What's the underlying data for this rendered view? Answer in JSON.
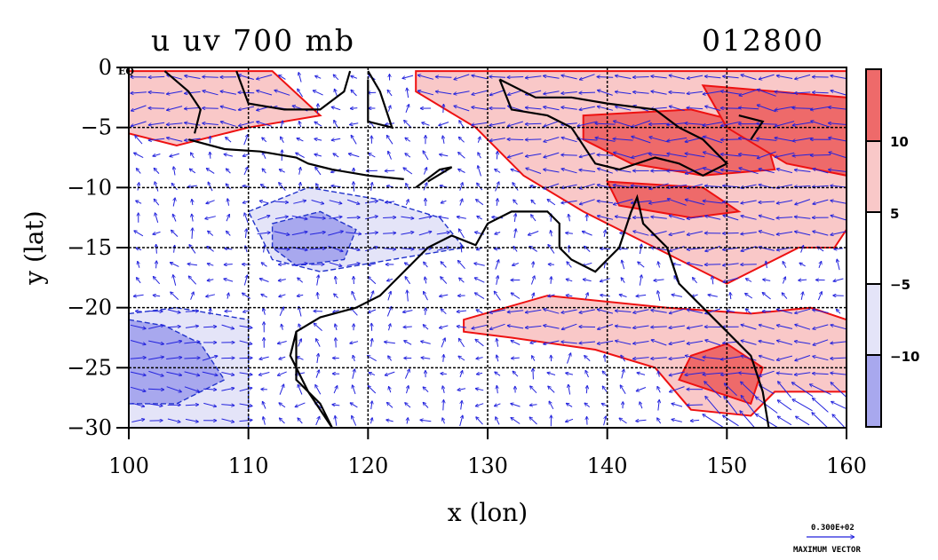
{
  "chart_data": {
    "type": "heatmap",
    "title": "u uv 700 mb",
    "date_label": "012800",
    "xlabel": "x (lon)",
    "ylabel": "y (lat)",
    "xlim": [
      100,
      160
    ],
    "ylim": [
      -30,
      0
    ],
    "x_ticks": [
      "100",
      "110",
      "120",
      "130",
      "140",
      "150",
      "160"
    ],
    "y_ticks": [
      "0",
      "−5",
      "−10",
      "−15",
      "−20",
      "−25",
      "−30"
    ],
    "y_tick_values": [
      0,
      -5,
      -10,
      -15,
      -20,
      -25,
      -30
    ],
    "x_tick_values": [
      100,
      110,
      120,
      130,
      140,
      150,
      160
    ],
    "equator_label": "EQ",
    "colorbar": {
      "labels": [
        "10",
        "5",
        "−5",
        "−10"
      ],
      "bins": [
        {
          "range": "> 10",
          "color": "#ee6a6a"
        },
        {
          "range": "5 to 10",
          "color": "#f9c8c8"
        },
        {
          "range": "-5 to 5",
          "color": "#ffffff"
        },
        {
          "range": "-10 to -5",
          "color": "#e4e4f8"
        },
        {
          "range": "< -10",
          "color": "#a8a8ee"
        }
      ]
    },
    "reference_vector": {
      "value": "0.300E+02",
      "label": "MAXIMUM VECTOR"
    },
    "regions": [
      {
        "name": "north-warm",
        "level": 5,
        "poly": [
          [
            100,
            -0.3
          ],
          [
            112,
            -0.3
          ],
          [
            116,
            -4
          ],
          [
            110,
            -5
          ],
          [
            104,
            -6.5
          ],
          [
            100,
            -5.5
          ]
        ]
      },
      {
        "name": "northeast-warm",
        "level": 5,
        "poly": [
          [
            124,
            -0.3
          ],
          [
            160,
            -0.3
          ],
          [
            160,
            -13.5
          ],
          [
            159,
            -15
          ],
          [
            156,
            -15
          ],
          [
            150,
            -18
          ],
          [
            144,
            -15
          ],
          [
            138,
            -12
          ],
          [
            133,
            -9
          ],
          [
            129,
            -5
          ],
          [
            124,
            -2
          ]
        ]
      },
      {
        "name": "northeast-strong-a",
        "level": 10,
        "poly": [
          [
            138,
            -4
          ],
          [
            147,
            -3.5
          ],
          [
            153,
            -5
          ],
          [
            154,
            -8.5
          ],
          [
            148,
            -9
          ],
          [
            142,
            -8
          ],
          [
            138,
            -6
          ]
        ]
      },
      {
        "name": "northeast-strong-b",
        "level": 10,
        "poly": [
          [
            140,
            -9.5
          ],
          [
            148,
            -10
          ],
          [
            151,
            -12
          ],
          [
            147,
            -12.5
          ],
          [
            141,
            -11.5
          ]
        ]
      },
      {
        "name": "northeast-strong-c",
        "level": 10,
        "poly": [
          [
            148,
            -1.5
          ],
          [
            160,
            -2.5
          ],
          [
            160,
            -9
          ],
          [
            155,
            -8
          ],
          [
            150,
            -5
          ]
        ]
      },
      {
        "name": "south-warm",
        "level": 5,
        "poly": [
          [
            128,
            -21
          ],
          [
            135,
            -19
          ],
          [
            145,
            -20
          ],
          [
            152,
            -20.5
          ],
          [
            157,
            -20
          ],
          [
            160,
            -21
          ],
          [
            160,
            -27
          ],
          [
            154,
            -27
          ],
          [
            152,
            -29
          ],
          [
            147,
            -28.5
          ],
          [
            144,
            -25
          ],
          [
            139,
            -23.5
          ],
          [
            132,
            -22.5
          ],
          [
            128,
            -22
          ]
        ]
      },
      {
        "name": "south-strong",
        "level": 10,
        "poly": [
          [
            147,
            -24
          ],
          [
            150,
            -23
          ],
          [
            153,
            -25
          ],
          [
            152,
            -28
          ],
          [
            149,
            -27
          ],
          [
            146,
            -26
          ]
        ]
      },
      {
        "name": "west-cool",
        "level": -5,
        "poly": [
          [
            100,
            -20.5
          ],
          [
            104,
            -20
          ],
          [
            110,
            -21
          ],
          [
            110,
            -30
          ],
          [
            100,
            -30
          ]
        ]
      },
      {
        "name": "west-strong",
        "level": -10,
        "poly": [
          [
            100,
            -21
          ],
          [
            103,
            -21.5
          ],
          [
            106,
            -23
          ],
          [
            108,
            -26
          ],
          [
            104,
            -28
          ],
          [
            100,
            -28
          ]
        ]
      },
      {
        "name": "central-cool",
        "level": -5,
        "poly": [
          [
            110,
            -12
          ],
          [
            115,
            -10
          ],
          [
            121,
            -11
          ],
          [
            126,
            -12.5
          ],
          [
            128,
            -15
          ],
          [
            122,
            -16
          ],
          [
            116,
            -17
          ],
          [
            112,
            -16
          ]
        ]
      },
      {
        "name": "central-strong",
        "level": -10,
        "poly": [
          [
            112,
            -13
          ],
          [
            116,
            -12
          ],
          [
            119,
            -13.5
          ],
          [
            118,
            -16
          ],
          [
            114,
            -16.5
          ],
          [
            112,
            -15
          ]
        ]
      }
    ],
    "coastlines": [
      [
        [
          114,
          -22
        ],
        [
          114,
          -26
        ],
        [
          116,
          -28
        ],
        [
          117,
          -30
        ],
        [
          115,
          -27
        ],
        [
          113.5,
          -24
        ],
        [
          114,
          -22
        ],
        [
          116,
          -20.8
        ],
        [
          119,
          -20
        ],
        [
          121,
          -19
        ],
        [
          123,
          -17
        ],
        [
          125,
          -15
        ],
        [
          127,
          -14
        ],
        [
          129,
          -14.8
        ],
        [
          130,
          -13
        ],
        [
          132,
          -12
        ],
        [
          135,
          -12
        ],
        [
          136,
          -13
        ],
        [
          136,
          -15
        ],
        [
          137,
          -16
        ],
        [
          139,
          -17
        ],
        [
          141,
          -15
        ],
        [
          142,
          -12
        ],
        [
          142.5,
          -10.8
        ],
        [
          143,
          -13
        ],
        [
          145,
          -15
        ],
        [
          146,
          -18
        ],
        [
          148,
          -20
        ],
        [
          150,
          -22
        ],
        [
          152,
          -24
        ],
        [
          153,
          -27
        ],
        [
          153.5,
          -30
        ]
      ],
      [
        [
          105,
          -6
        ],
        [
          108,
          -6.8
        ],
        [
          111,
          -7
        ],
        [
          114,
          -7.5
        ],
        [
          115,
          -8
        ],
        [
          117,
          -8.5
        ],
        [
          120,
          -9
        ],
        [
          123,
          -9.3
        ]
      ],
      [
        [
          103,
          -0.3
        ],
        [
          105,
          -2
        ],
        [
          106,
          -3.5
        ],
        [
          105.5,
          -5.5
        ]
      ],
      [
        [
          109,
          -0.3
        ],
        [
          110,
          -3
        ],
        [
          113,
          -3.5
        ],
        [
          116,
          -3.5
        ],
        [
          118,
          -2
        ],
        [
          118.5,
          -0.3
        ]
      ],
      [
        [
          120,
          -0.3
        ],
        [
          121,
          -2
        ],
        [
          122,
          -5
        ],
        [
          120,
          -4.5
        ],
        [
          120,
          -1
        ]
      ],
      [
        [
          124,
          -10
        ],
        [
          126,
          -8.5
        ],
        [
          127,
          -8.3
        ],
        [
          125,
          -9.5
        ]
      ],
      [
        [
          131,
          -1
        ],
        [
          134,
          -2.5
        ],
        [
          137,
          -2.5
        ],
        [
          140,
          -3
        ],
        [
          144,
          -3.5
        ],
        [
          146,
          -5
        ],
        [
          148,
          -6
        ],
        [
          150,
          -8
        ],
        [
          148,
          -9
        ],
        [
          146,
          -8
        ],
        [
          144,
          -7.5
        ],
        [
          141,
          -8.5
        ],
        [
          139,
          -8
        ],
        [
          137,
          -5
        ],
        [
          135,
          -4
        ],
        [
          132,
          -3.5
        ],
        [
          131,
          -1
        ]
      ],
      [
        [
          151,
          -4
        ],
        [
          153,
          -4.5
        ],
        [
          152,
          -6
        ]
      ]
    ]
  }
}
